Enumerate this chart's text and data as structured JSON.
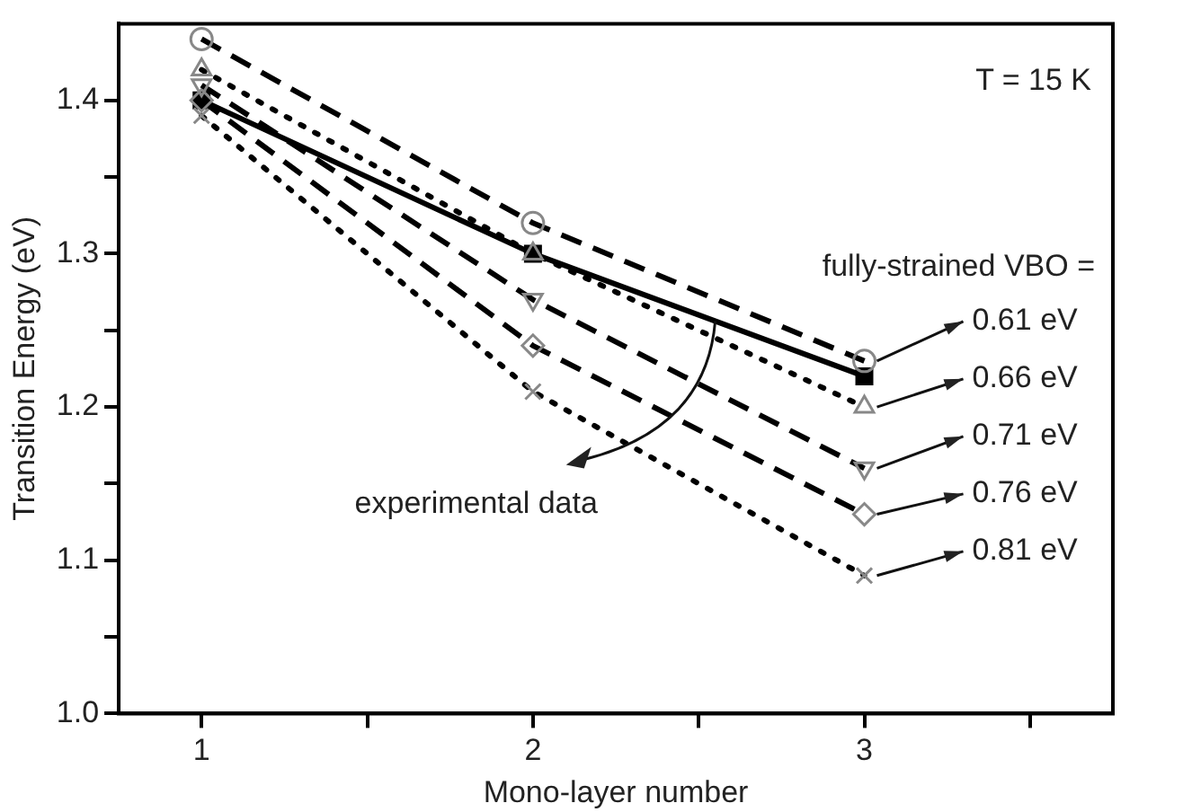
{
  "chart_data": {
    "type": "line",
    "xlabel": "Mono-layer number",
    "ylabel": "Transition Energy (eV)",
    "x": [
      1,
      2,
      3
    ],
    "xlim": [
      0.75,
      3.75
    ],
    "xticks": [
      1,
      2,
      3,
      {
        "value": 1.5,
        "label": null
      },
      {
        "value": 2.5,
        "label": null
      },
      {
        "value": 3.5,
        "label": null
      }
    ],
    "ylim": [
      1.0,
      1.45
    ],
    "yticks": [
      {
        "value": 1.0,
        "label": "1.0"
      },
      1.1,
      1.2,
      1.3,
      1.4,
      {
        "value": 1.05,
        "label": null
      },
      {
        "value": 1.15,
        "label": null
      },
      {
        "value": 1.25,
        "label": null
      },
      {
        "value": 1.35,
        "label": null
      }
    ],
    "grid": false,
    "legend": false,
    "series": [
      {
        "name": "experimental data",
        "color": "#000000",
        "values": [
          1.4,
          1.3,
          1.22
        ],
        "marker": "square",
        "line_style": "solid"
      },
      {
        "name": "0.61 eV",
        "color": "#000000",
        "values": [
          1.44,
          1.32,
          1.23
        ],
        "marker": "circle",
        "line_style": "dashed"
      },
      {
        "name": "0.66 eV",
        "color": "#000000",
        "values": [
          1.42,
          1.3,
          1.2
        ],
        "marker": "triangle",
        "line_style": "dotted"
      },
      {
        "name": "0.71 eV",
        "color": "#000000",
        "values": [
          1.41,
          1.27,
          1.16
        ],
        "marker": "triangle",
        "line_style": "dashed"
      },
      {
        "name": "0.76 eV",
        "color": "#000000",
        "values": [
          1.4,
          1.24,
          1.13
        ],
        "marker": "diamond",
        "line_style": "dashed"
      },
      {
        "name": "0.81 eV",
        "color": "#000000",
        "values": [
          1.39,
          1.21,
          1.09
        ],
        "marker": "cross",
        "line_style": "dotted"
      }
    ],
    "annotations": [
      "T = 15 K",
      "fully-strained VBO ="
    ]
  }
}
